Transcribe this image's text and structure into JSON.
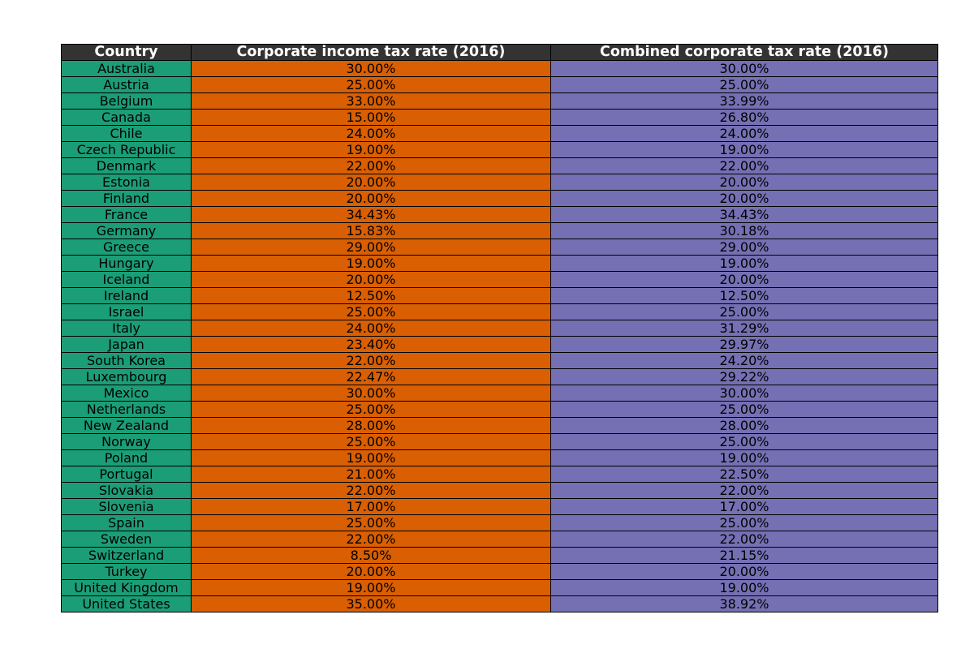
{
  "colors": {
    "header": "#333333",
    "country": "#1b9e77",
    "income": "#d95f02",
    "combined": "#7570b3",
    "border": "#000000"
  },
  "chart_data": {
    "type": "table",
    "columns": [
      "Country",
      "Corporate income tax rate (2016)",
      "Combined corporate tax rate (2016)"
    ],
    "rows": [
      [
        "Australia",
        "30.00%",
        "30.00%"
      ],
      [
        "Austria",
        "25.00%",
        "25.00%"
      ],
      [
        "Belgium",
        "33.00%",
        "33.99%"
      ],
      [
        "Canada",
        "15.00%",
        "26.80%"
      ],
      [
        "Chile",
        "24.00%",
        "24.00%"
      ],
      [
        "Czech Republic",
        "19.00%",
        "19.00%"
      ],
      [
        "Denmark",
        "22.00%",
        "22.00%"
      ],
      [
        "Estonia",
        "20.00%",
        "20.00%"
      ],
      [
        "Finland",
        "20.00%",
        "20.00%"
      ],
      [
        "France",
        "34.43%",
        "34.43%"
      ],
      [
        "Germany",
        "15.83%",
        "30.18%"
      ],
      [
        "Greece",
        "29.00%",
        "29.00%"
      ],
      [
        "Hungary",
        "19.00%",
        "19.00%"
      ],
      [
        "Iceland",
        "20.00%",
        "20.00%"
      ],
      [
        "Ireland",
        "12.50%",
        "12.50%"
      ],
      [
        "Israel",
        "25.00%",
        "25.00%"
      ],
      [
        "Italy",
        "24.00%",
        "31.29%"
      ],
      [
        "Japan",
        "23.40%",
        "29.97%"
      ],
      [
        "South Korea",
        "22.00%",
        "24.20%"
      ],
      [
        "Luxembourg",
        "22.47%",
        "29.22%"
      ],
      [
        "Mexico",
        "30.00%",
        "30.00%"
      ],
      [
        "Netherlands",
        "25.00%",
        "25.00%"
      ],
      [
        "New Zealand",
        "28.00%",
        "28.00%"
      ],
      [
        "Norway",
        "25.00%",
        "25.00%"
      ],
      [
        "Poland",
        "19.00%",
        "19.00%"
      ],
      [
        "Portugal",
        "21.00%",
        "22.50%"
      ],
      [
        "Slovakia",
        "22.00%",
        "22.00%"
      ],
      [
        "Slovenia",
        "17.00%",
        "17.00%"
      ],
      [
        "Spain",
        "25.00%",
        "25.00%"
      ],
      [
        "Sweden",
        "22.00%",
        "22.00%"
      ],
      [
        "Switzerland",
        "8.50%",
        "21.15%"
      ],
      [
        "Turkey",
        "20.00%",
        "20.00%"
      ],
      [
        "United Kingdom",
        "19.00%",
        "19.00%"
      ],
      [
        "United States",
        "35.00%",
        "38.92%"
      ]
    ]
  }
}
